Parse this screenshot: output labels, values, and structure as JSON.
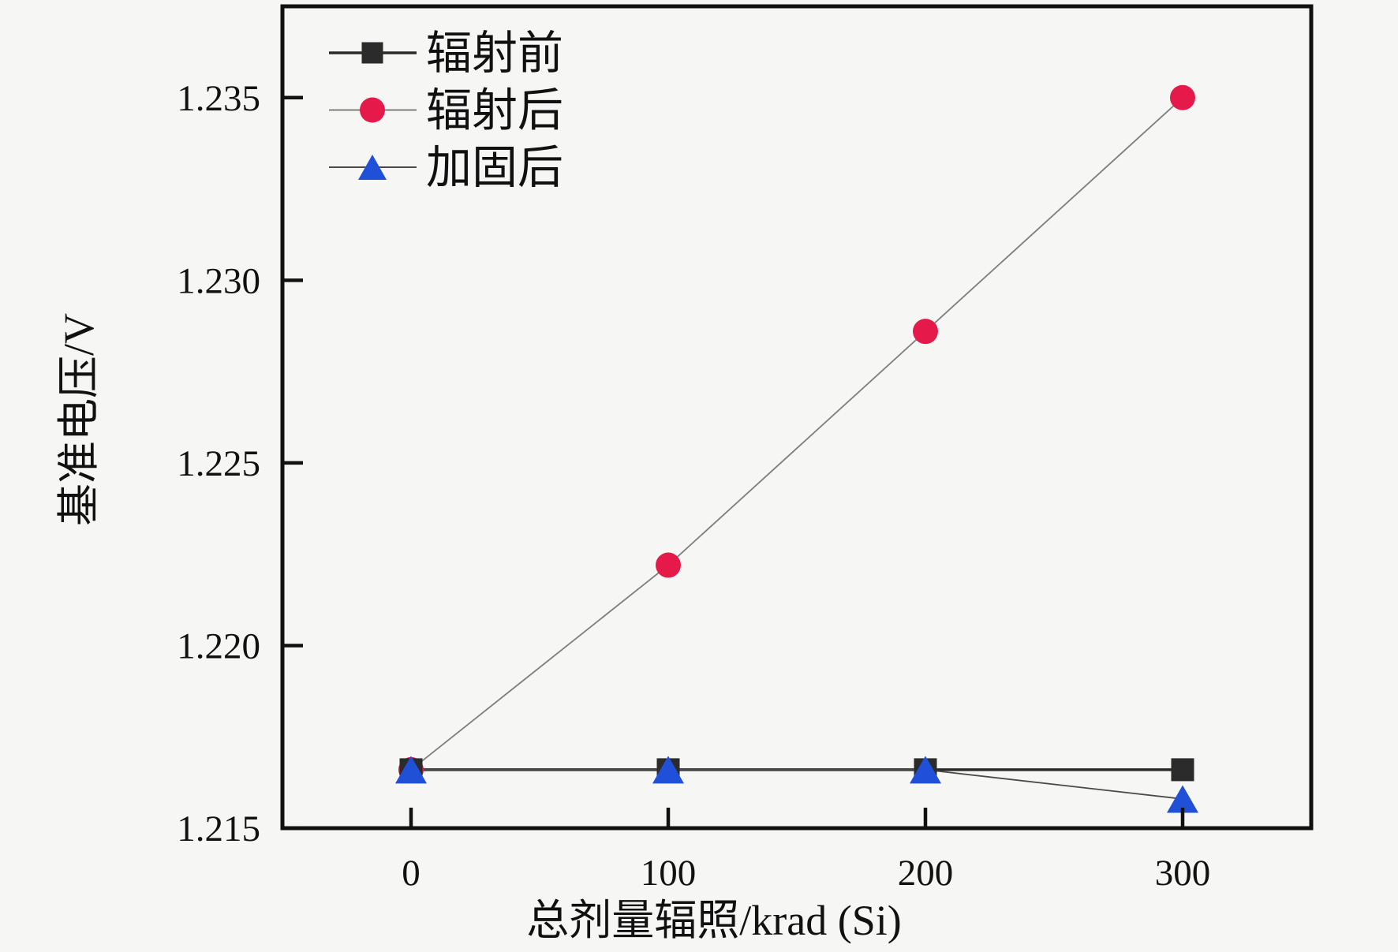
{
  "figure": {
    "background": "#f6f6f4",
    "axis_color": "#111111"
  },
  "chart_data": {
    "type": "line",
    "title": "",
    "xlabel": "总剂量辐照/krad (Si)",
    "ylabel": "基准电压/V",
    "x": [
      0,
      100,
      200,
      300
    ],
    "series": [
      {
        "name": "辐射前",
        "marker": "square",
        "marker_color": "#2b2b2b",
        "line_color": "#2a2a2a",
        "line_width": 3.5,
        "marker_z": 2,
        "values": [
          1.2166,
          1.2166,
          1.2166,
          1.2166
        ]
      },
      {
        "name": "辐射后",
        "marker": "circle",
        "marker_color": "#e51a4b",
        "line_color": "#7d7d7d",
        "line_width": 1.8,
        "marker_z": 1,
        "values": [
          1.2166,
          1.2222,
          1.2286,
          1.235
        ]
      },
      {
        "name": "加固后",
        "marker": "triangle",
        "marker_color": "#2050d8",
        "line_color": "#4a4a4a",
        "line_width": 1.8,
        "marker_z": 3,
        "values": [
          1.2166,
          1.2166,
          1.2166,
          1.2158
        ]
      }
    ],
    "xticks": [
      0,
      100,
      200,
      300
    ],
    "xtick_labels": [
      "0",
      "100",
      "200",
      "300"
    ],
    "ytick_values": [
      1.215,
      1.22,
      1.225,
      1.23,
      1.235
    ],
    "ytick_labels": [
      "1.215",
      "1.220",
      "1.225",
      "1.230",
      "1.235"
    ],
    "xlim": [
      -50,
      350
    ],
    "ylim": [
      1.215,
      1.2375
    ],
    "grid": false,
    "legend_position": "top-left"
  }
}
